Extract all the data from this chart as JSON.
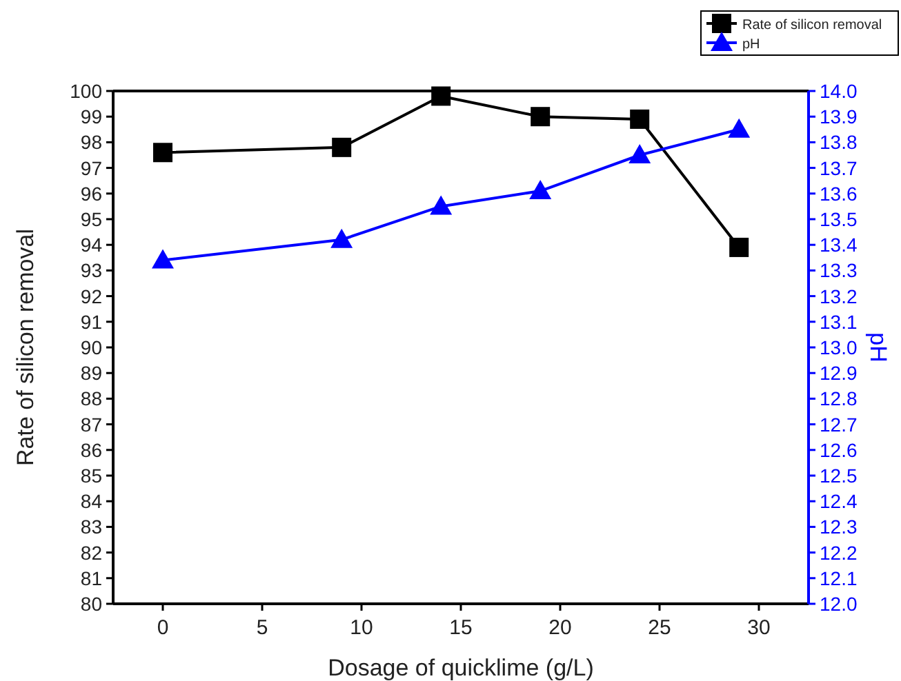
{
  "chart_data": {
    "type": "line",
    "xlabel": "Dosage of quicklime (g/L)",
    "ylabel": "Rate of silicon removal",
    "y2label": "pH",
    "x": [
      0,
      9,
      14,
      19,
      24,
      29
    ],
    "series": [
      {
        "name": "Rate of silicon removal",
        "color": "#000000",
        "marker": "square",
        "values": [
          97.6,
          97.8,
          99.8,
          99.0,
          98.9,
          93.9
        ]
      },
      {
        "name": "pH",
        "color": "#0000ff",
        "marker": "triangle",
        "axis": "y2",
        "values": [
          13.34,
          13.42,
          13.55,
          13.61,
          13.75,
          13.85
        ]
      }
    ],
    "xlim": [
      -2.5,
      32.5
    ],
    "xticks": [
      0,
      5,
      10,
      15,
      20,
      25,
      30
    ],
    "ylim": [
      80,
      100
    ],
    "yticks": [
      80,
      81,
      82,
      83,
      84,
      85,
      86,
      87,
      88,
      89,
      90,
      91,
      92,
      93,
      94,
      95,
      96,
      97,
      98,
      99,
      100
    ],
    "y2lim": [
      12.0,
      14.0
    ],
    "y2ticks": [
      {
        "value": 12,
        "label": "12.0"
      },
      12.1,
      12.2,
      12.3,
      12.4,
      12.5,
      12.6,
      12.7,
      12.8,
      12.9,
      {
        "value": 13,
        "label": "13.0"
      },
      13.1,
      13.2,
      13.3,
      13.4,
      13.5,
      13.6,
      13.7,
      13.8,
      13.9,
      {
        "value": 14,
        "label": "14.0"
      }
    ],
    "legend": "top right",
    "grid": false,
    "line_style": "solid"
  }
}
